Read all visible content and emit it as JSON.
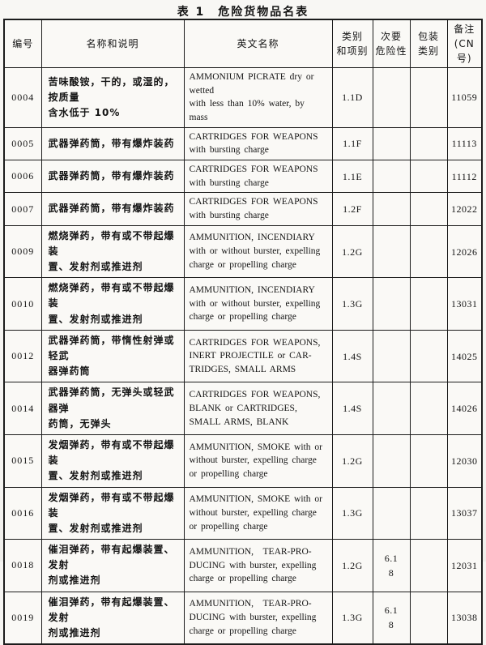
{
  "page": {
    "title": "表 1　危险货物品名表"
  },
  "table": {
    "columns": [
      {
        "key": "id",
        "label": "编号"
      },
      {
        "key": "name_cn",
        "label": "名称和说明"
      },
      {
        "key": "name_en",
        "label": "英文名称"
      },
      {
        "key": "class_division",
        "label": "类别\n和项别"
      },
      {
        "key": "secondary_hazard",
        "label": "次要\n危险性"
      },
      {
        "key": "packing_group",
        "label": "包装\n类别"
      },
      {
        "key": "remarks",
        "label": "备注\n(CN 号)"
      }
    ],
    "rows": [
      {
        "id": "0004",
        "name_cn": "苦味酸铵，干的，或湿的，按质量\n含水低于 10%",
        "name_en": "AMMONIUM PICRATE dry or wetted\nwith less than 10% water, by mass",
        "class_division": "1.1D",
        "secondary_hazard": "",
        "packing_group": "",
        "remarks": "11059"
      },
      {
        "id": "0005",
        "name_cn": "武器弹药筒，带有爆炸装药",
        "name_en": "CARTRIDGES FOR WEAPONS\nwith bursting charge",
        "class_division": "1.1F",
        "secondary_hazard": "",
        "packing_group": "",
        "remarks": "11113"
      },
      {
        "id": "0006",
        "name_cn": "武器弹药筒，带有爆炸装药",
        "name_en": "CARTRIDGES FOR WEAPONS\nwith bursting charge",
        "class_division": "1.1E",
        "secondary_hazard": "",
        "packing_group": "",
        "remarks": "11112"
      },
      {
        "id": "0007",
        "name_cn": "武器弹药筒，带有爆炸装药",
        "name_en": "CARTRIDGES FOR WEAPONS\nwith bursting charge",
        "class_division": "1.2F",
        "secondary_hazard": "",
        "packing_group": "",
        "remarks": "12022"
      },
      {
        "id": "0009",
        "name_cn": "燃烧弹药，带有或不带起爆装\n置、发射剂或推进剂",
        "name_en": "AMMUNITION, INCENDIARY\nwith or without burster, expelling\ncharge or propelling charge",
        "class_division": "1.2G",
        "secondary_hazard": "",
        "packing_group": "",
        "remarks": "12026"
      },
      {
        "id": "0010",
        "name_cn": "燃烧弹药，带有或不带起爆装\n置、发射剂或推进剂",
        "name_en": "AMMUNITION, INCENDIARY\nwith or without burster, expelling\ncharge or propelling charge",
        "class_division": "1.3G",
        "secondary_hazard": "",
        "packing_group": "",
        "remarks": "13031"
      },
      {
        "id": "0012",
        "name_cn": "武器弹药筒，带惰性射弹或轻武\n器弹药筒",
        "name_en": "CARTRIDGES FOR WEAPONS,\nINERT PROJECTILE or CAR-\nTRIDGES, SMALL ARMS",
        "class_division": "1.4S",
        "secondary_hazard": "",
        "packing_group": "",
        "remarks": "14025"
      },
      {
        "id": "0014",
        "name_cn": "武器弹药筒，无弹头或轻武器弹\n药筒，无弹头",
        "name_en": "CARTRIDGES FOR WEAPONS,\nBLANK or CARTRIDGES,\nSMALL ARMS, BLANK",
        "class_division": "1.4S",
        "secondary_hazard": "",
        "packing_group": "",
        "remarks": "14026"
      },
      {
        "id": "0015",
        "name_cn": "发烟弹药，带有或不带起爆装\n置、发射剂或推进剂",
        "name_en": "AMMUNITION, SMOKE with or\nwithout burster, expelling charge\nor propelling charge",
        "class_division": "1.2G",
        "secondary_hazard": "",
        "packing_group": "",
        "remarks": "12030"
      },
      {
        "id": "0016",
        "name_cn": "发烟弹药，带有或不带起爆装\n置、发射剂或推进剂",
        "name_en": "AMMUNITION, SMOKE with or\nwithout burster, expelling charge\nor propelling charge",
        "class_division": "1.3G",
        "secondary_hazard": "",
        "packing_group": "",
        "remarks": "13037"
      },
      {
        "id": "0018",
        "name_cn": "催泪弹药，带有起爆装置、发射\n剂或推进剂",
        "name_en": "AMMUNITION,　TEAR-PRO-\nDUCING with burster, expelling\ncharge or propelling charge",
        "class_division": "1.2G",
        "secondary_hazard": "6.1\n8",
        "packing_group": "",
        "remarks": "12031"
      },
      {
        "id": "0019",
        "name_cn": "催泪弹药，带有起爆装置、发射\n剂或推进剂",
        "name_en": "AMMUNITION,　TEAR-PRO-\nDUCING with burster, expelling\ncharge or propelling charge",
        "class_division": "1.3G",
        "secondary_hazard": "6.1\n8",
        "packing_group": "",
        "remarks": "13038"
      }
    ]
  }
}
